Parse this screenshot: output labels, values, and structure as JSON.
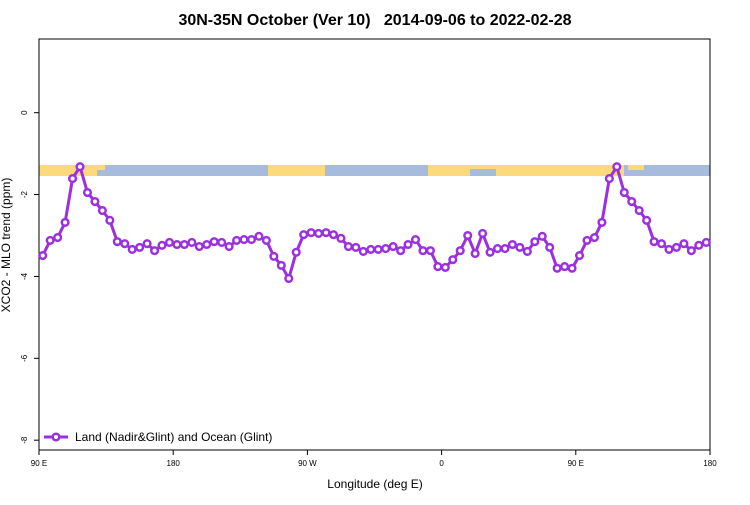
{
  "chart_data": {
    "type": "line",
    "title": "30N-35N October (Ver 10)   2014-09-06 to 2022-02-28",
    "x_label": "Longitude (deg E)",
    "y_label": "XCO2 - MLO trend (ppm)",
    "xlim": [
      90,
      540
    ],
    "ylim": [
      -8.24,
      1.8
    ],
    "xticks": [
      {
        "value": 90,
        "label": "90 E"
      },
      180,
      {
        "value": 270,
        "label": "90 W"
      },
      {
        "value": 360,
        "label": "0"
      },
      {
        "value": 450,
        "label": "90 E"
      },
      {
        "value": 540,
        "label": "180"
      }
    ],
    "yticks": [
      -8,
      -6,
      -4,
      -2,
      0
    ],
    "legend": "bottom-left",
    "x": [
      92.5,
      97.5,
      102.5,
      107.5,
      112.5,
      117.5,
      122.5,
      127.5,
      132.5,
      137.5,
      142.5,
      147.5,
      152.5,
      157.5,
      162.5,
      167.5,
      172.5,
      177.5,
      182.5,
      187.5,
      192.5,
      197.5,
      202.5,
      207.5,
      212.5,
      217.5,
      222.5,
      227.5,
      232.5,
      237.5,
      242.5,
      247.5,
      252.5,
      257.5,
      262.5,
      267.5,
      272.5,
      277.5,
      282.5,
      287.5,
      292.5,
      297.5,
      302.5,
      307.5,
      312.5,
      317.5,
      322.5,
      327.5,
      332.5,
      337.5,
      342.5,
      347.5,
      352.5,
      357.5,
      362.5,
      367.5,
      372.5,
      377.5,
      382.5,
      387.5,
      392.5,
      397.5,
      402.5,
      407.5,
      412.5,
      417.5,
      422.5,
      427.5,
      432.5,
      437.5,
      442.5,
      447.5,
      452.5,
      457.5,
      462.5,
      467.5,
      472.5,
      477.5,
      482.5,
      487.5,
      492.5,
      497.5,
      502.5,
      507.5,
      512.5,
      517.5,
      522.5,
      527.5,
      532.5,
      537.5
    ],
    "series": [
      {
        "name": "Land (Nadir&Glint) and Ocean (Glint)",
        "color": "#9b30e0",
        "values": [
          -3.49,
          -3.12,
          -3.05,
          -2.68,
          -1.61,
          -1.32,
          -1.95,
          -2.17,
          -2.39,
          -2.63,
          -3.15,
          -3.2,
          -3.34,
          -3.29,
          -3.2,
          -3.37,
          -3.24,
          -3.17,
          -3.22,
          -3.22,
          -3.17,
          -3.27,
          -3.22,
          -3.15,
          -3.17,
          -3.27,
          -3.12,
          -3.1,
          -3.1,
          -3.02,
          -3.12,
          -3.51,
          -3.73,
          -4.05,
          -3.41,
          -2.98,
          -2.93,
          -2.95,
          -2.93,
          -2.98,
          -3.07,
          -3.27,
          -3.29,
          -3.39,
          -3.34,
          -3.34,
          -3.32,
          -3.27,
          -3.37,
          -3.22,
          -3.1,
          -3.37,
          -3.37,
          -3.76,
          -3.78,
          -3.59,
          -3.37,
          -3.0,
          -3.44,
          -2.95,
          -3.41,
          -3.32,
          -3.32,
          -3.22,
          -3.29,
          -3.39,
          -3.15,
          -3.02,
          -3.29,
          -3.8,
          -3.76,
          -3.8,
          -3.49,
          -3.12,
          -3.05,
          -2.68,
          -1.61,
          -1.32,
          -1.95,
          -2.17,
          -2.39,
          -2.63,
          -3.15,
          -3.2,
          -3.34,
          -3.29,
          -3.2,
          -3.37,
          -3.24,
          -3.17
        ]
      }
    ]
  }
}
